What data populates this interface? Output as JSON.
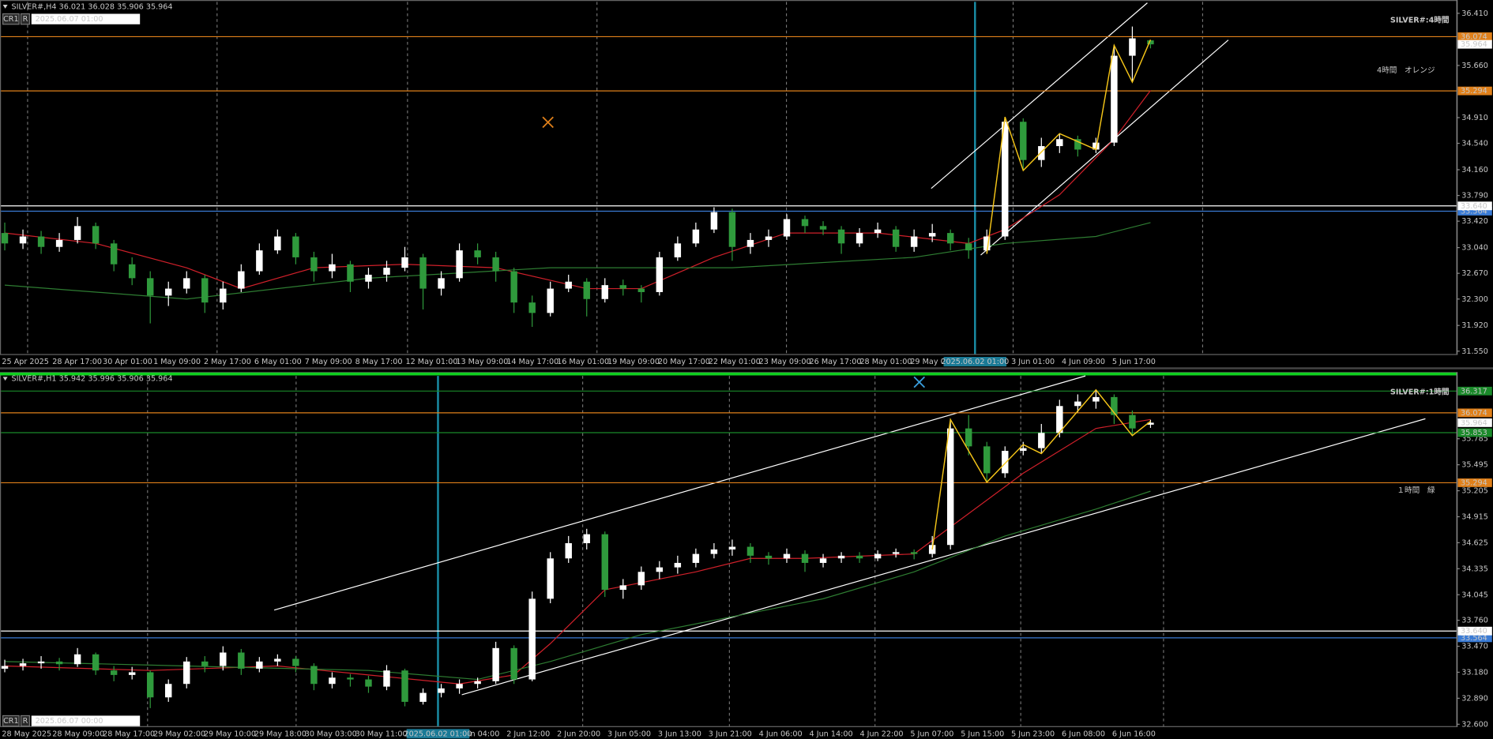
{
  "chart_data": [
    {
      "type": "candlestick",
      "title": "SILVER#,H4 36.021 36.028 35.906 35.964",
      "buttons": [
        "CR1",
        "R"
      ],
      "chart_time": "2025.06.07 01:00",
      "watermark": "SILVER#:4時間",
      "annotation": "4時間　オレンジ",
      "annotation_color": "#f0901e",
      "cursor_label": "2025.06.02 01:00",
      "up_color": "#ffffff",
      "down_color": "#2f9a3c",
      "ylim": [
        31.509,
        36.574
      ],
      "yticks": [
        {
          "value": 36.41,
          "label": "36.410"
        },
        {
          "value": 35.66,
          "label": "35.660"
        },
        {
          "value": 34.91,
          "label": "34.910"
        },
        {
          "value": 34.54,
          "label": "34.540"
        },
        {
          "value": 34.16,
          "label": "34.160"
        },
        {
          "value": 33.79,
          "label": "33.790"
        },
        {
          "value": 33.42,
          "label": "33.420"
        },
        {
          "value": 33.04,
          "label": "33.040"
        },
        {
          "value": 32.67,
          "label": "32.670"
        },
        {
          "value": 32.3,
          "label": "32.300"
        },
        {
          "value": 31.92,
          "label": "31.920"
        },
        {
          "value": 31.55,
          "label": "31.550"
        }
      ],
      "levels": [
        {
          "value": 36.074,
          "color": "#e0801a"
        },
        {
          "value": 35.294,
          "color": "#e0801a"
        },
        {
          "value": 33.564,
          "color": "#3a7bd5"
        },
        {
          "value": 33.64,
          "label": "33.640",
          "color": "#ffffff"
        }
      ],
      "xlabels": [
        "25 Apr 2025",
        "28 Apr 17:00",
        "30 Apr 01:00",
        "1 May 09:00",
        "2 May 17:00",
        "6 May 01:00",
        "7 May 09:00",
        "8 May 17:00",
        "12 May 01:00",
        "13 May 09:00",
        "14 May 17:00",
        "16 May 01:00",
        "19 May 09:00",
        "20 May 17:00",
        "22 May 01:00",
        "23 May 09:00",
        "26 May 17:00",
        "28 May 01:00",
        "29 May 09:00",
        null,
        "3 Jun 01:00",
        "4 Jun 09:00",
        "5 Jun 17:00"
      ],
      "ohlc": [
        [
          33.25,
          33.4,
          33.0,
          33.1
        ],
        [
          33.1,
          33.3,
          33.02,
          33.2
        ],
        [
          33.2,
          33.28,
          32.95,
          33.05
        ],
        [
          33.05,
          33.25,
          32.98,
          33.15
        ],
        [
          33.15,
          33.48,
          33.1,
          33.35
        ],
        [
          33.35,
          33.4,
          33.02,
          33.1
        ],
        [
          33.1,
          33.15,
          32.7,
          32.8
        ],
        [
          32.8,
          32.9,
          32.5,
          32.6
        ],
        [
          32.6,
          32.7,
          31.95,
          32.35
        ],
        [
          32.35,
          32.55,
          32.2,
          32.45
        ],
        [
          32.45,
          32.7,
          32.38,
          32.6
        ],
        [
          32.6,
          32.65,
          32.1,
          32.25
        ],
        [
          32.25,
          32.55,
          32.15,
          32.45
        ],
        [
          32.45,
          32.8,
          32.4,
          32.7
        ],
        [
          32.7,
          33.1,
          32.65,
          33.0
        ],
        [
          33.0,
          33.3,
          32.95,
          33.2
        ],
        [
          33.2,
          33.25,
          32.8,
          32.9
        ],
        [
          32.9,
          32.98,
          32.55,
          32.7
        ],
        [
          32.7,
          32.95,
          32.6,
          32.8
        ],
        [
          32.8,
          32.85,
          32.4,
          32.55
        ],
        [
          32.55,
          32.75,
          32.45,
          32.65
        ],
        [
          32.65,
          32.85,
          32.55,
          32.75
        ],
        [
          32.75,
          33.05,
          32.7,
          32.9
        ],
        [
          32.9,
          32.95,
          32.15,
          32.45
        ],
        [
          32.45,
          32.7,
          32.35,
          32.6
        ],
        [
          32.6,
          33.1,
          32.55,
          33.0
        ],
        [
          33.0,
          33.1,
          32.8,
          32.9
        ],
        [
          32.9,
          32.98,
          32.55,
          32.7
        ],
        [
          32.7,
          32.75,
          32.1,
          32.25
        ],
        [
          32.25,
          32.35,
          31.9,
          32.1
        ],
        [
          32.1,
          32.55,
          32.05,
          32.45
        ],
        [
          32.45,
          32.65,
          32.4,
          32.55
        ],
        [
          32.55,
          32.6,
          32.05,
          32.3
        ],
        [
          32.3,
          32.6,
          32.25,
          32.5
        ],
        [
          32.5,
          32.58,
          32.35,
          32.45
        ],
        [
          32.45,
          32.5,
          32.25,
          32.4
        ],
        [
          32.4,
          32.98,
          32.35,
          32.9
        ],
        [
          32.9,
          33.2,
          32.85,
          33.1
        ],
        [
          33.1,
          33.4,
          33.05,
          33.3
        ],
        [
          33.3,
          33.62,
          33.25,
          33.55
        ],
        [
          33.55,
          33.6,
          32.85,
          33.05
        ],
        [
          33.05,
          33.25,
          32.95,
          33.15
        ],
        [
          33.15,
          33.3,
          33.05,
          33.2
        ],
        [
          33.2,
          33.52,
          33.15,
          33.45
        ],
        [
          33.45,
          33.5,
          33.25,
          33.35
        ],
        [
          33.35,
          33.42,
          33.22,
          33.3
        ],
        [
          33.3,
          33.35,
          32.95,
          33.1
        ],
        [
          33.1,
          33.32,
          33.05,
          33.25
        ],
        [
          33.25,
          33.4,
          33.18,
          33.3
        ],
        [
          33.3,
          33.35,
          32.98,
          33.05
        ],
        [
          33.05,
          33.3,
          32.98,
          33.2
        ],
        [
          33.2,
          33.38,
          33.12,
          33.25
        ],
        [
          33.25,
          33.3,
          33.0,
          33.1
        ],
        [
          33.1,
          33.18,
          32.88,
          33.0
        ],
        [
          33.0,
          33.3,
          32.95,
          33.2
        ],
        [
          33.2,
          34.92,
          33.15,
          34.85
        ],
        [
          34.85,
          34.9,
          34.15,
          34.3
        ],
        [
          34.3,
          34.62,
          34.2,
          34.5
        ],
        [
          34.5,
          34.68,
          34.4,
          34.6
        ],
        [
          34.6,
          34.65,
          34.35,
          34.45
        ],
        [
          34.45,
          34.62,
          34.4,
          34.55
        ],
        [
          34.55,
          35.95,
          34.5,
          35.8
        ],
        [
          35.8,
          36.22,
          35.42,
          36.05
        ],
        [
          36.021,
          36.028,
          35.906,
          35.964
        ]
      ],
      "ma": [
        {
          "color": "#d0202a",
          "x": [
            0,
            5,
            10,
            13,
            17,
            22,
            27,
            32,
            35,
            39,
            43,
            48,
            53,
            55,
            58,
            61,
            63
          ],
          "values": [
            33.25,
            33.1,
            32.75,
            32.45,
            32.75,
            32.8,
            32.75,
            32.45,
            32.45,
            32.9,
            33.25,
            33.25,
            33.1,
            33.3,
            33.8,
            34.6,
            35.3
          ]
        },
        {
          "color": "#2e7d32",
          "x": [
            0,
            10,
            20,
            30,
            40,
            50,
            55,
            60,
            63
          ],
          "values": [
            32.5,
            32.3,
            32.6,
            32.75,
            32.75,
            32.9,
            33.1,
            33.2,
            33.4
          ]
        }
      ],
      "zigzag": {
        "color": "#f5c518",
        "x": [
          54,
          55,
          56,
          58,
          60,
          61,
          62,
          63
        ],
        "values": [
          32.95,
          34.92,
          34.15,
          34.68,
          34.45,
          35.95,
          35.42,
          36.03
        ]
      }
    },
    {
      "type": "candlestick",
      "title": "SILVER#,H1 35.942 35.996 35.906 35.964",
      "buttons": [
        "CR1",
        "R"
      ],
      "chart_time": "2025.06.07 00:00",
      "watermark": "SILVER#:1時間",
      "annotation": "１時間　緑",
      "annotation_color": "#1f9a2c",
      "cursor_label": "2025.06.02 01:00",
      "up_color": "#ffffff",
      "down_color": "#2f9a3c",
      "ylim": [
        32.579,
        36.507
      ],
      "yticks": [
        35.785,
        35.495,
        35.205,
        34.915,
        34.625,
        34.335,
        34.045,
        {
          "value": 33.76,
          "label": "33.760"
        },
        {
          "value": 33.47,
          "label": "33.470"
        },
        {
          "value": 33.18,
          "label": "33.180"
        },
        {
          "value": 32.89,
          "label": "32.890"
        },
        {
          "value": 32.6,
          "label": "32.600"
        }
      ],
      "levels": [
        {
          "value": 36.317,
          "color": "#1a8a2a"
        },
        {
          "value": 36.074,
          "color": "#e0801a"
        },
        {
          "value": 35.853,
          "color": "#1a8a2a"
        },
        {
          "value": 35.294,
          "color": "#e0801a"
        },
        {
          "value": 33.564,
          "color": "#3a7bd5"
        },
        {
          "value": 33.64,
          "label": "33.640",
          "color": "#ffffff"
        }
      ],
      "xlabels": [
        "28 May 2025",
        "28 May 09:00",
        "28 May 17:00",
        "29 May 02:00",
        "29 May 10:00",
        "29 May 18:00",
        "30 May 03:00",
        "30 May 11:00",
        null,
        "2 Jun 04:00",
        "2 Jun 12:00",
        "2 Jun 20:00",
        "3 Jun 05:00",
        "3 Jun 13:00",
        "3 Jun 21:00",
        "4 Jun 06:00",
        "4 Jun 14:00",
        "4 Jun 22:00",
        "5 Jun 07:00",
        "5 Jun 15:00",
        "5 Jun 23:00",
        "6 Jun 08:00",
        "6 Jun 16:00"
      ],
      "ohlc": [
        [
          33.22,
          33.32,
          33.18,
          33.25
        ],
        [
          33.25,
          33.33,
          33.2,
          33.28
        ],
        [
          33.28,
          33.36,
          33.22,
          33.3
        ],
        [
          33.3,
          33.34,
          33.2,
          33.27
        ],
        [
          33.27,
          33.45,
          33.24,
          33.38
        ],
        [
          33.38,
          33.4,
          33.15,
          33.2
        ],
        [
          33.2,
          33.25,
          33.08,
          33.15
        ],
        [
          33.15,
          33.24,
          33.1,
          33.18
        ],
        [
          33.18,
          33.2,
          32.78,
          32.9
        ],
        [
          32.9,
          33.1,
          32.85,
          33.05
        ],
        [
          33.05,
          33.35,
          33.0,
          33.3
        ],
        [
          33.3,
          33.36,
          33.18,
          33.25
        ],
        [
          33.25,
          33.47,
          33.2,
          33.4
        ],
        [
          33.4,
          33.44,
          33.15,
          33.22
        ],
        [
          33.22,
          33.35,
          33.18,
          33.3
        ],
        [
          33.3,
          33.38,
          33.25,
          33.33
        ],
        [
          33.33,
          33.36,
          33.18,
          33.25
        ],
        [
          33.25,
          33.28,
          32.98,
          33.05
        ],
        [
          33.05,
          33.18,
          33.0,
          33.12
        ],
        [
          33.12,
          33.16,
          33.02,
          33.1
        ],
        [
          33.1,
          33.14,
          32.95,
          33.02
        ],
        [
          33.02,
          33.26,
          32.98,
          33.2
        ],
        [
          33.2,
          33.22,
          32.8,
          32.85
        ],
        [
          32.85,
          33.0,
          32.82,
          32.95
        ],
        [
          32.95,
          33.05,
          32.9,
          33.0
        ],
        [
          33.0,
          33.1,
          32.94,
          33.05
        ],
        [
          33.05,
          33.12,
          33.0,
          33.08
        ],
        [
          33.08,
          33.52,
          33.05,
          33.45
        ],
        [
          33.45,
          33.48,
          33.05,
          33.1
        ],
        [
          33.1,
          34.08,
          33.08,
          34.0
        ],
        [
          34.0,
          34.52,
          33.95,
          34.45
        ],
        [
          34.45,
          34.7,
          34.4,
          34.62
        ],
        [
          34.62,
          34.78,
          34.55,
          34.72
        ],
        [
          34.72,
          34.75,
          34.02,
          34.1
        ],
        [
          34.1,
          34.22,
          34.0,
          34.15
        ],
        [
          34.15,
          34.36,
          34.1,
          34.3
        ],
        [
          34.3,
          34.42,
          34.22,
          34.35
        ],
        [
          34.35,
          34.48,
          34.28,
          34.4
        ],
        [
          34.4,
          34.56,
          34.35,
          34.5
        ],
        [
          34.5,
          34.62,
          34.45,
          34.55
        ],
        [
          34.55,
          34.66,
          34.48,
          34.58
        ],
        [
          34.58,
          34.62,
          34.4,
          34.48
        ],
        [
          34.48,
          34.52,
          34.38,
          34.45
        ],
        [
          34.45,
          34.56,
          34.4,
          34.5
        ],
        [
          34.5,
          34.54,
          34.3,
          34.4
        ],
        [
          34.4,
          34.5,
          34.35,
          34.45
        ],
        [
          34.45,
          34.52,
          34.4,
          34.48
        ],
        [
          34.48,
          34.52,
          34.4,
          34.45
        ],
        [
          34.45,
          34.54,
          34.42,
          34.5
        ],
        [
          34.5,
          34.56,
          34.46,
          34.52
        ],
        [
          34.52,
          34.55,
          34.44,
          34.5
        ],
        [
          34.5,
          34.7,
          34.46,
          34.6
        ],
        [
          34.6,
          36.0,
          34.55,
          35.9
        ],
        [
          35.9,
          36.05,
          35.6,
          35.7
        ],
        [
          35.7,
          35.75,
          35.3,
          35.4
        ],
        [
          35.4,
          35.7,
          35.35,
          35.65
        ],
        [
          35.65,
          35.75,
          35.6,
          35.68
        ],
        [
          35.68,
          35.95,
          35.62,
          35.85
        ],
        [
          35.85,
          36.22,
          35.8,
          36.15
        ],
        [
          36.15,
          36.28,
          36.08,
          36.2
        ],
        [
          36.2,
          36.33,
          36.12,
          36.25
        ],
        [
          36.25,
          36.28,
          35.95,
          36.05
        ],
        [
          36.05,
          36.1,
          35.82,
          35.9
        ],
        [
          35.942,
          35.996,
          35.906,
          35.964
        ]
      ],
      "ma": [
        {
          "color": "#d0202a",
          "x": [
            0,
            8,
            15,
            20,
            25,
            28,
            30,
            33,
            38,
            41,
            44,
            50,
            52,
            56,
            60,
            63
          ],
          "values": [
            33.25,
            33.2,
            33.25,
            33.15,
            33.05,
            33.15,
            33.5,
            34.1,
            34.3,
            34.45,
            34.45,
            34.5,
            34.8,
            35.4,
            35.9,
            36.0
          ]
        },
        {
          "color": "#2e7d32",
          "x": [
            0,
            10,
            20,
            26,
            30,
            35,
            40,
            45,
            50,
            55,
            60,
            63
          ],
          "values": [
            33.3,
            33.25,
            33.2,
            33.1,
            33.3,
            33.6,
            33.8,
            34.0,
            34.3,
            34.7,
            35.0,
            35.2
          ]
        }
      ],
      "zigzag": {
        "color": "#f5c518",
        "x": [
          51,
          52,
          54,
          56,
          57,
          60,
          62,
          63
        ],
        "values": [
          34.55,
          36.0,
          35.3,
          35.72,
          35.62,
          36.33,
          35.82,
          35.98
        ]
      }
    }
  ]
}
